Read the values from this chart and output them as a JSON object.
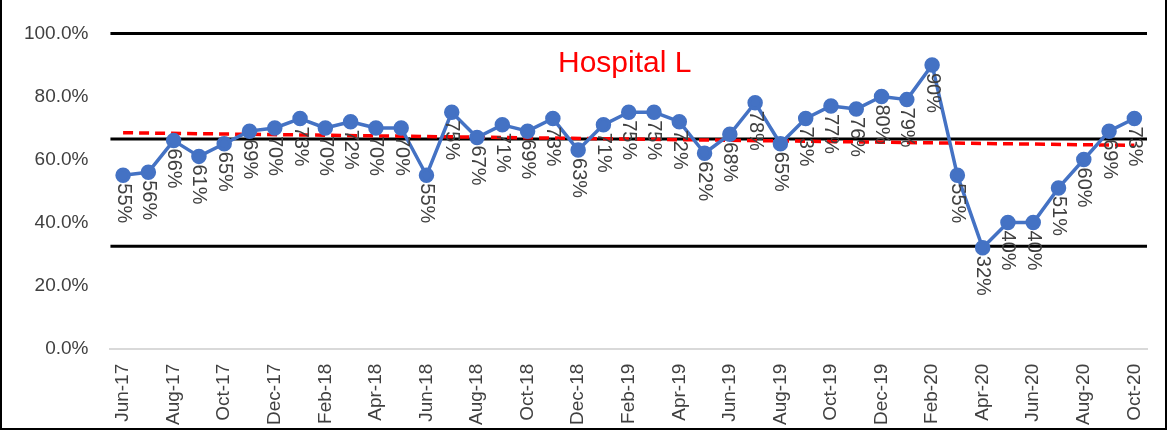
{
  "chart_data": {
    "type": "line",
    "title": "Hospital L",
    "categories": [
      "Jun-17",
      null,
      "Aug-17",
      null,
      "Oct-17",
      null,
      "Dec-17",
      null,
      "Feb-18",
      null,
      "Apr-18",
      null,
      "Jun-18",
      null,
      "Aug-18",
      null,
      "Oct-18",
      null,
      "Dec-18",
      null,
      "Feb-19",
      null,
      "Apr-19",
      null,
      "Jun-19",
      null,
      "Aug-19",
      null,
      "Oct-19",
      null,
      "Dec-19",
      null,
      "Feb-20",
      null,
      "Apr-20",
      null,
      "Jun-20",
      null,
      "Aug-20",
      null,
      "Oct-20"
    ],
    "series": [
      {
        "color": "#4472c4",
        "marker": "circle",
        "line_style": "solid",
        "values": [
          55,
          56,
          66,
          61,
          65,
          69,
          70,
          73,
          70,
          72,
          70,
          70,
          55,
          75,
          67,
          71,
          69,
          73,
          63,
          71,
          75,
          75,
          72,
          62,
          68,
          78,
          65,
          73,
          77,
          76,
          80,
          79,
          90,
          55,
          32,
          40,
          40,
          51,
          60,
          69,
          73
        ],
        "value_labels": [
          "55%",
          "56%",
          "66%",
          "61%",
          "65%",
          "69%",
          "70%",
          "73%",
          "70%",
          "72%",
          "70%",
          "70%",
          "55%",
          "75%",
          "67%",
          "71%",
          "69%",
          "73%",
          "63%",
          "71%",
          "75%",
          "75%",
          "72%",
          "62%",
          "68%",
          "78%",
          "65%",
          "73%",
          "77%",
          "76%",
          "80%",
          "79%",
          "90%",
          "55%",
          "32%",
          "40%",
          "40%",
          "51%",
          "60%",
          "69%",
          "73%"
        ]
      },
      {
        "color": "#ff0000",
        "marker": "none",
        "line_style": "dashed",
        "x": [
          "Jun-17",
          "Oct-20"
        ],
        "values": [
          68.5,
          64.5
        ]
      }
    ],
    "ylim": [
      0,
      100
    ],
    "yticks": [
      {
        "value": 0,
        "label": "0.0%"
      },
      {
        "value": 20,
        "label": "20.0%"
      },
      {
        "value": 40,
        "label": "40.0%"
      },
      {
        "value": 60,
        "label": "60.0%"
      },
      {
        "value": 80,
        "label": "80.0%"
      },
      {
        "value": 100,
        "label": "100.0%"
      }
    ],
    "ref_lines": [
      {
        "axis": "y",
        "value": 100,
        "color": "#000000"
      },
      {
        "axis": "y",
        "value": 66.5,
        "color": "#000000"
      },
      {
        "axis": "y",
        "value": 32.5,
        "color": "#000000"
      }
    ],
    "grid": false,
    "legend": false
  }
}
